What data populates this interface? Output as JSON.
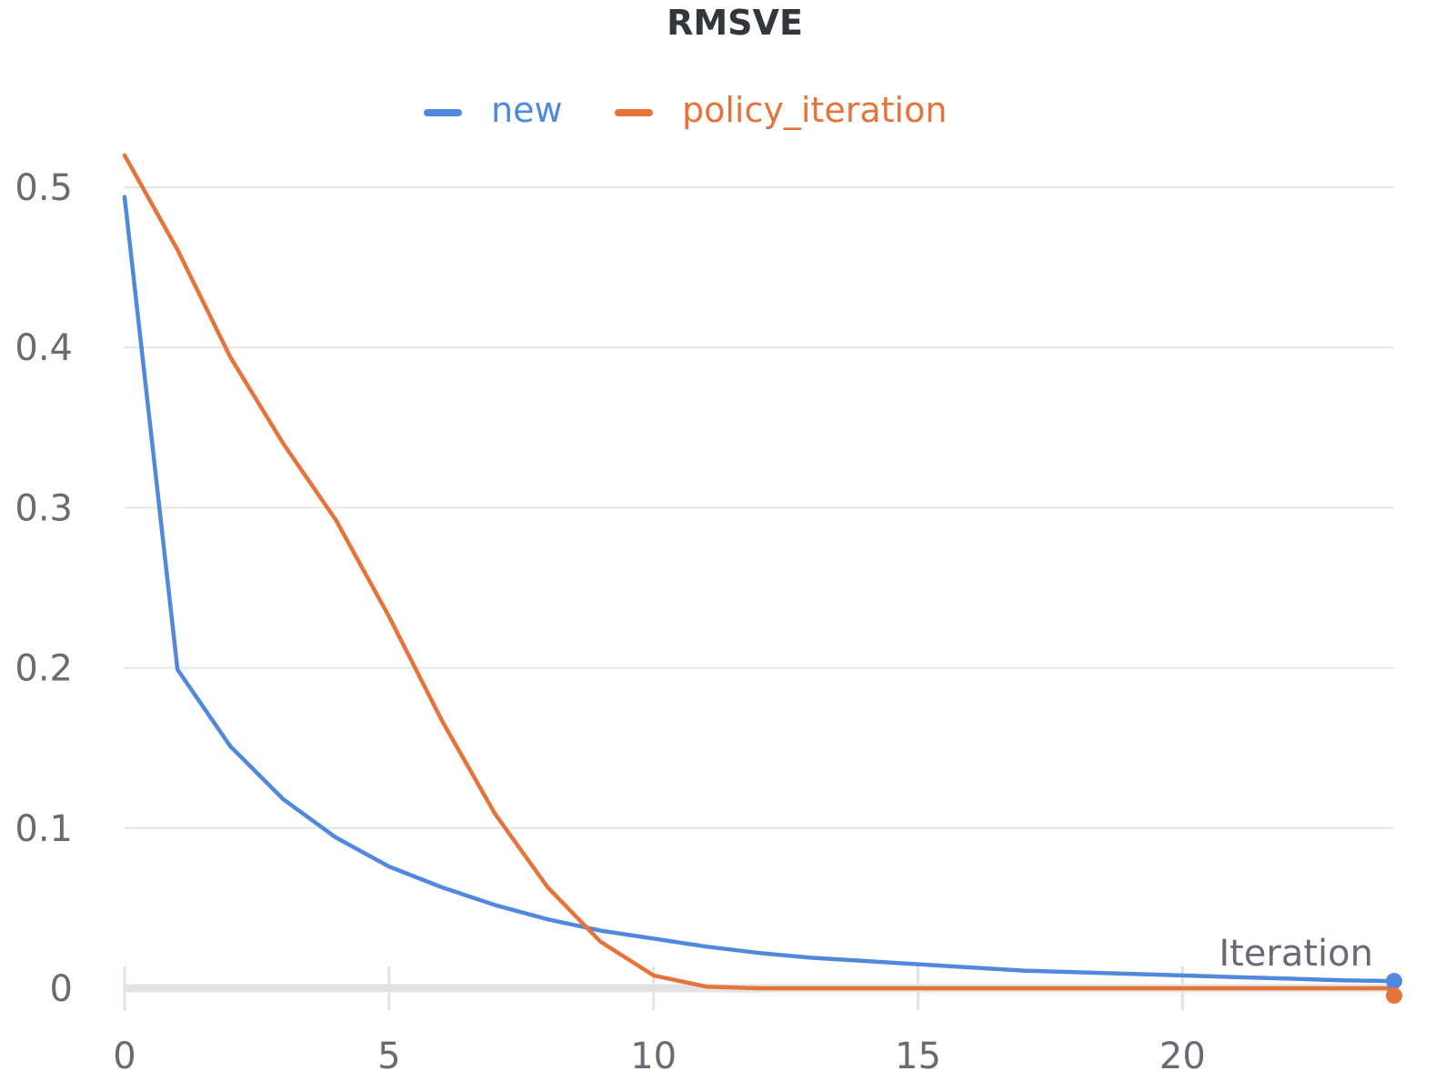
{
  "chart_data": {
    "type": "line",
    "title": "RMSVE",
    "xlabel": "Iteration",
    "ylabel": "",
    "xlim": [
      0,
      24
    ],
    "ylim": [
      0,
      0.5
    ],
    "x_ticks": [
      0,
      5,
      10,
      15,
      20
    ],
    "y_ticks": [
      0,
      0.1,
      0.2,
      0.3,
      0.4,
      0.5
    ],
    "y_tick_labels": [
      "0",
      "0.1",
      "0.2",
      "0.3",
      "0.4",
      "0.5"
    ],
    "x_tick_labels": [
      "0",
      "5",
      "10",
      "15",
      "20"
    ],
    "legend_position": "top-center",
    "grid": true,
    "x": [
      0,
      1,
      2,
      3,
      4,
      5,
      6,
      7,
      8,
      9,
      10,
      11,
      12,
      13,
      14,
      15,
      16,
      17,
      18,
      19,
      20,
      21,
      22,
      23,
      24
    ],
    "series": [
      {
        "name": "new",
        "color": "#5088dd",
        "values": [
          0.494,
          0.199,
          0.151,
          0.118,
          0.094,
          0.076,
          0.063,
          0.052,
          0.043,
          0.036,
          0.031,
          0.026,
          0.022,
          0.019,
          0.017,
          0.015,
          0.013,
          0.011,
          0.01,
          0.009,
          0.008,
          0.007,
          0.006,
          0.005,
          0.0045
        ]
      },
      {
        "name": "policy_iteration",
        "color": "#e5733a",
        "values": [
          0.52,
          0.461,
          0.394,
          0.34,
          0.292,
          0.232,
          0.167,
          0.109,
          0.063,
          0.029,
          0.008,
          0.001,
          0.0,
          0.0,
          0.0,
          0.0,
          0.0,
          0.0,
          0.0,
          0.0,
          0.0,
          0.0,
          0.0,
          0.0,
          0.0
        ]
      }
    ]
  }
}
